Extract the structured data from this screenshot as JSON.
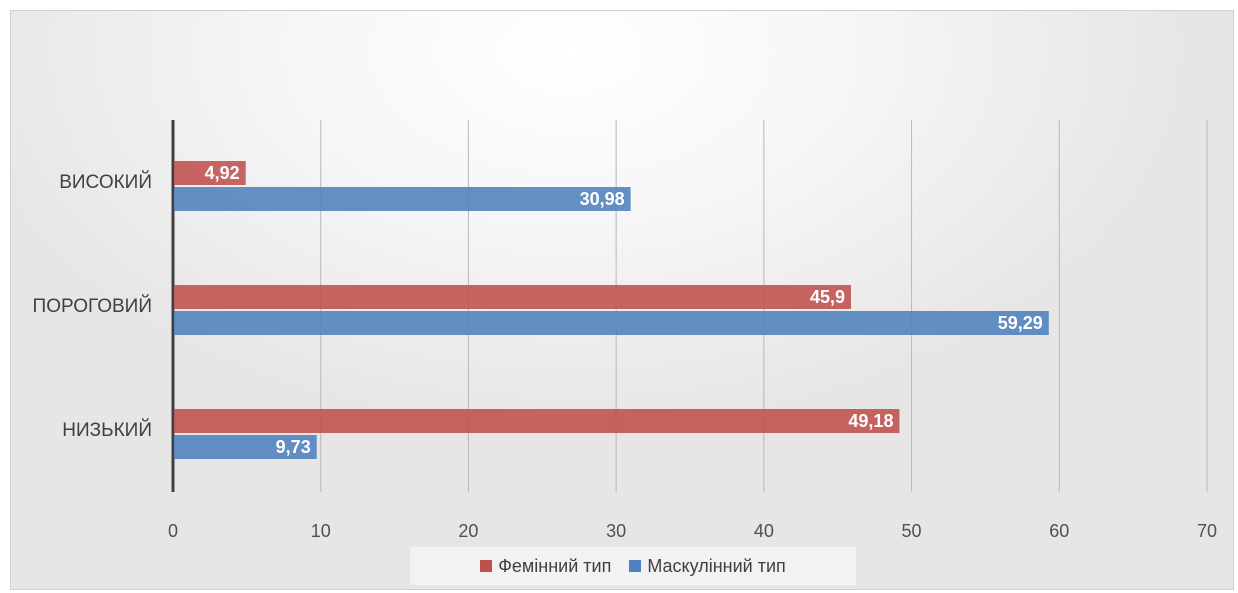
{
  "chart_data": {
    "type": "bar",
    "orientation": "horizontal",
    "categories": [
      "НИЗЬКИЙ",
      "ПОРОГОВИЙ",
      "ВИСОКИЙ"
    ],
    "series": [
      {
        "name": "Фемінний тип",
        "values": [
          49.18,
          45.9,
          4.92
        ],
        "labels": [
          "49,18",
          "45,9",
          "4,92"
        ],
        "color": "#c0504d"
      },
      {
        "name": "Маскулінний тип",
        "values": [
          9.73,
          59.29,
          30.98
        ],
        "labels": [
          "9,73",
          "59,29",
          "30,98"
        ],
        "color": "#4f81bd"
      }
    ],
    "xlim": [
      0,
      70
    ],
    "x_ticks": [
      "0",
      "10",
      "20",
      "30",
      "40",
      "50",
      "60",
      "70"
    ],
    "grid": true,
    "legend_position": "bottom"
  },
  "legend": {
    "items": [
      {
        "label": "Фемінний тип",
        "color": "#c0504d"
      },
      {
        "label": "Маскулінний тип",
        "color": "#4f81bd"
      }
    ]
  }
}
